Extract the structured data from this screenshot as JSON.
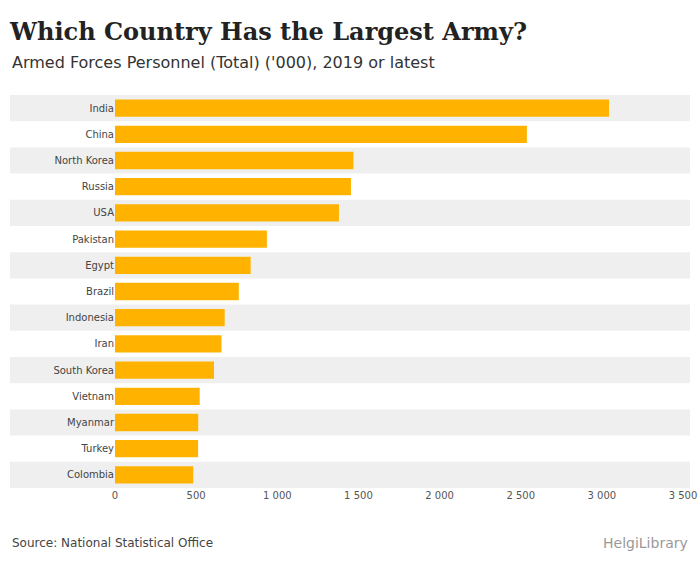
{
  "chart_data": {
    "type": "bar",
    "orientation": "horizontal",
    "title": "Which Country Has the Largest Army?",
    "subtitle": "Armed Forces Personnel (Total) ('000), 2019 or latest",
    "source": "Source: National Statistical Office",
    "brand": "HelgiLibrary",
    "categories": [
      "India",
      "China",
      "North Korea",
      "Russia",
      "USA",
      "Pakistan",
      "Egypt",
      "Brazil",
      "Indonesia",
      "Iran",
      "South Korea",
      "Vietnam",
      "Myanmar",
      "Turkey",
      "Colombia"
    ],
    "values": [
      3044,
      2538,
      1469,
      1454,
      1380,
      936,
      836,
      763,
      676,
      656,
      610,
      522,
      513,
      512,
      482
    ],
    "color": "#ffb300",
    "xlim": [
      0,
      3500
    ],
    "xticks": [
      0,
      500,
      {
        "value": 1000,
        "label": "1 000"
      },
      {
        "value": 1500,
        "label": "1 500"
      },
      {
        "value": 2000,
        "label": "2 000"
      },
      {
        "value": 2500,
        "label": "2 500"
      },
      {
        "value": 3000,
        "label": "3 000"
      },
      {
        "value": 3500,
        "label": "3 500"
      }
    ],
    "grid": false,
    "data_labels": false
  }
}
